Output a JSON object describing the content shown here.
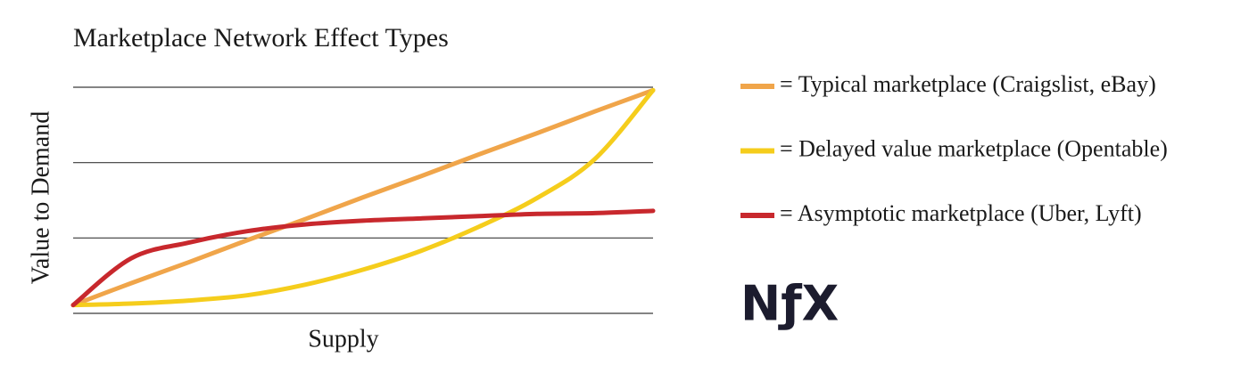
{
  "chart_data": {
    "type": "line",
    "title": "Marketplace Network Effect Types",
    "xlabel": "Supply",
    "ylabel": "Value to Demand",
    "x": [
      0,
      1,
      2,
      3,
      4,
      5,
      6,
      7,
      8,
      9,
      10
    ],
    "xlim": [
      0,
      10
    ],
    "ylim": [
      0,
      3
    ],
    "yticks": [
      0,
      1,
      2,
      3
    ],
    "grid": true,
    "legend": "right",
    "series": [
      {
        "name": "= Typical marketplace (Craigslist, eBay)",
        "color": "#f0a54a",
        "values": [
          0.11,
          0.4,
          0.68,
          0.97,
          1.25,
          1.54,
          1.82,
          2.11,
          2.39,
          2.68,
          2.96
        ]
      },
      {
        "name": "= Delayed value marketplace (Opentable)",
        "color": "#f5cd1c",
        "values": [
          0.11,
          0.13,
          0.17,
          0.24,
          0.38,
          0.58,
          0.83,
          1.15,
          1.53,
          2.05,
          2.96
        ]
      },
      {
        "name": "= Asymptotic marketplace (Uber, Lyft)",
        "color": "#c8282d",
        "values": [
          0.11,
          0.73,
          0.94,
          1.09,
          1.18,
          1.23,
          1.26,
          1.29,
          1.32,
          1.33,
          1.36
        ]
      }
    ],
    "logo": "NƒX"
  }
}
